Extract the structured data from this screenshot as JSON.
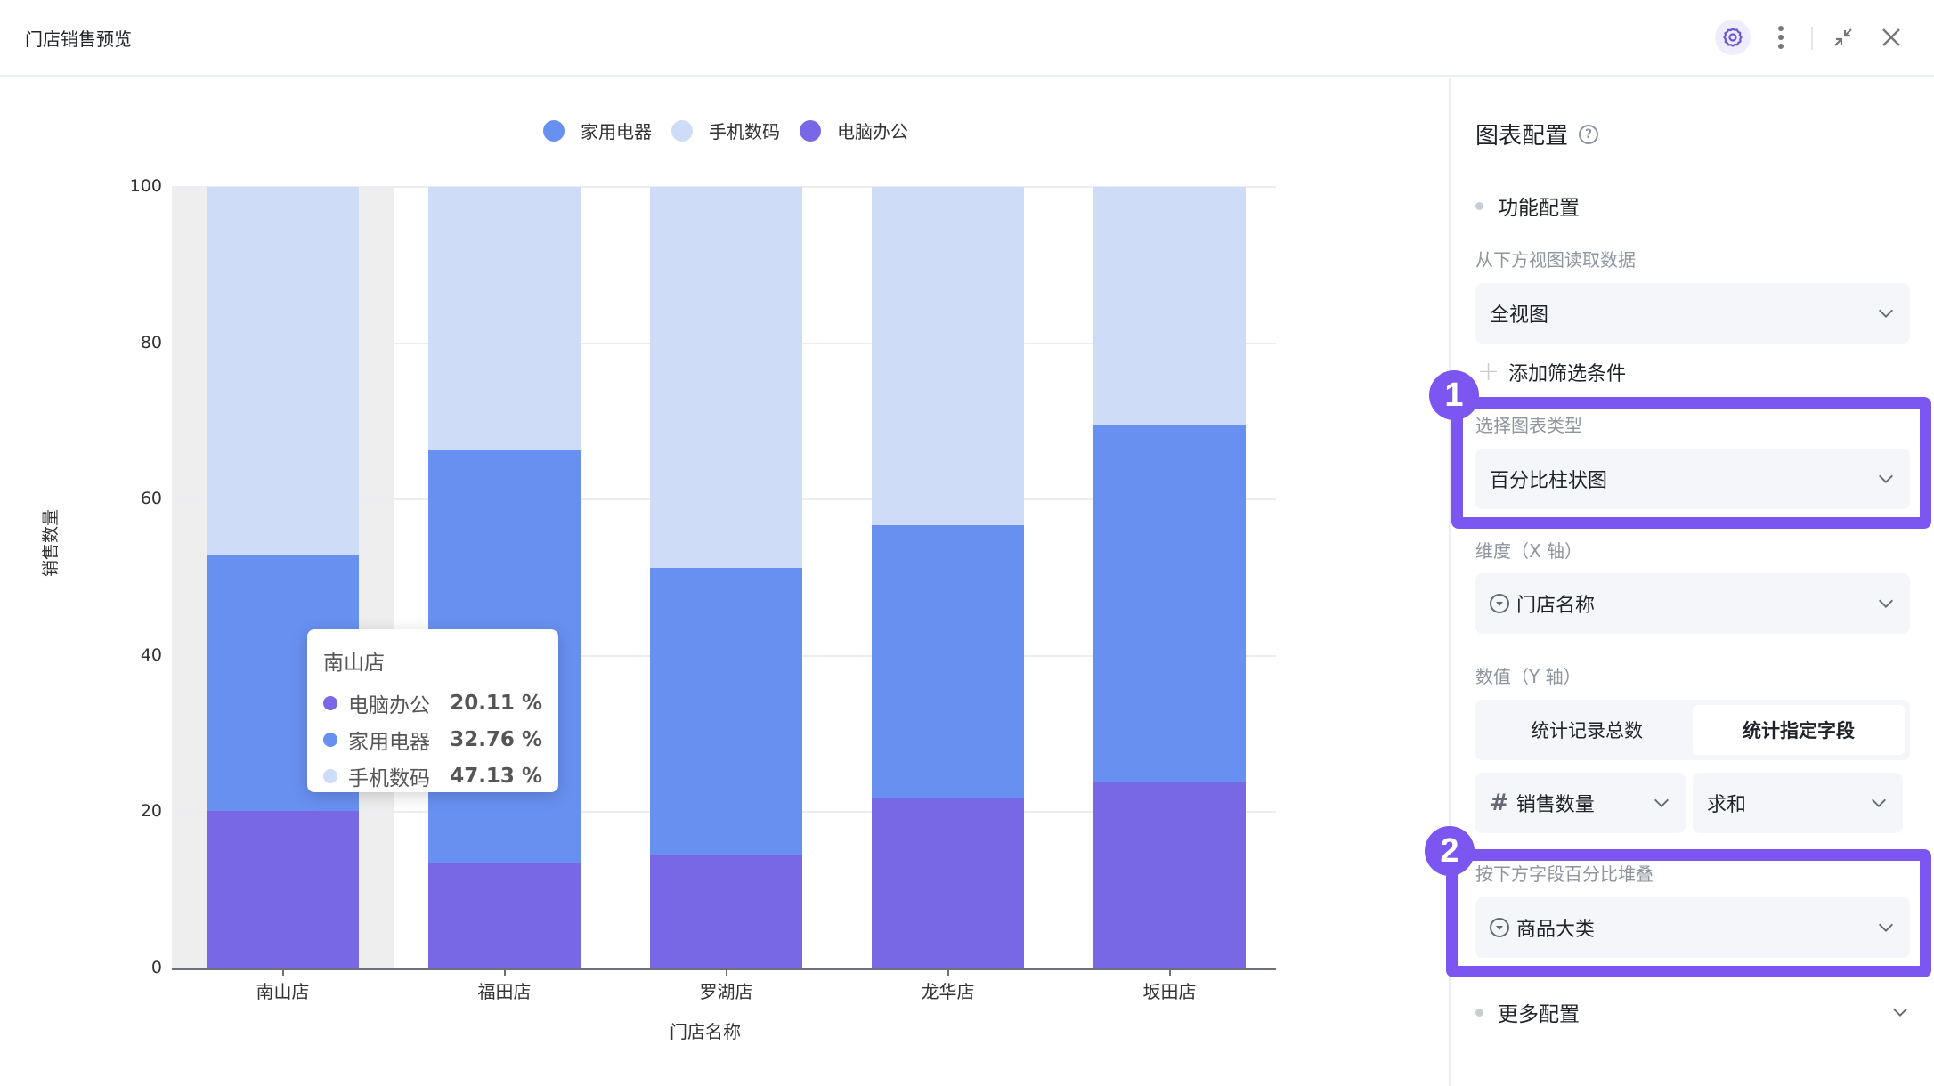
{
  "header": {
    "title": "门店销售预览",
    "icons": [
      "gear-icon",
      "more-vertical-icon",
      "shrink-icon",
      "close-icon"
    ]
  },
  "chart_data": {
    "type": "bar",
    "stacked": true,
    "percent": true,
    "title": "",
    "categories": [
      "南山店",
      "福田店",
      "罗湖店",
      "龙华店",
      "坂田店"
    ],
    "series": [
      {
        "name": "电脑办公",
        "color": "#7868e6",
        "values": [
          20.11,
          13.6,
          14.6,
          21.8,
          23.9
        ]
      },
      {
        "name": "家用电器",
        "color": "#6890f0",
        "values": [
          32.76,
          52.8,
          36.6,
          34.9,
          45.6
        ]
      },
      {
        "name": "手机数码",
        "color": "#cfdcf8",
        "values": [
          47.13,
          33.6,
          48.8,
          43.3,
          30.5
        ]
      }
    ],
    "legend": [
      "家用电器",
      "手机数码",
      "电脑办公"
    ],
    "legend_position": "top",
    "xlabel": "门店名称",
    "ylabel": "销售数量",
    "ylim": [
      0,
      100
    ],
    "yticks": [
      0,
      20,
      40,
      60,
      80,
      100
    ],
    "grid": true,
    "tooltip": {
      "category": "南山店",
      "rows": [
        {
          "name": "电脑办公",
          "value": "20.11 %",
          "color": "#7868e6"
        },
        {
          "name": "家用电器",
          "value": "32.76 %",
          "color": "#6890f0"
        },
        {
          "name": "手机数码",
          "value": "47.13 %",
          "color": "#cfdcf8"
        }
      ]
    },
    "hovered_index": 0
  },
  "panel": {
    "title": "图表配置",
    "feature_section": "功能配置",
    "source_label": "从下方视图读取数据",
    "source_value": "全视图",
    "add_filter": "添加筛选条件",
    "chart_type_label": "选择图表类型",
    "chart_type_value": "百分比柱状图",
    "x_axis_label": "维度（X 轴）",
    "x_axis_value": "门店名称",
    "y_axis_label": "数值（Y 轴）",
    "y_mode_options": [
      "统计记录总数",
      "统计指定字段"
    ],
    "y_mode_selected": "统计指定字段",
    "y_field_value": "销售数量",
    "y_agg_value": "求和",
    "stack_label": "按下方字段百分比堆叠",
    "stack_value": "商品大类",
    "more_section": "更多配置"
  },
  "annotations": {
    "badge1": "1",
    "badge2": "2",
    "highlight_color": "#7c56f0"
  }
}
